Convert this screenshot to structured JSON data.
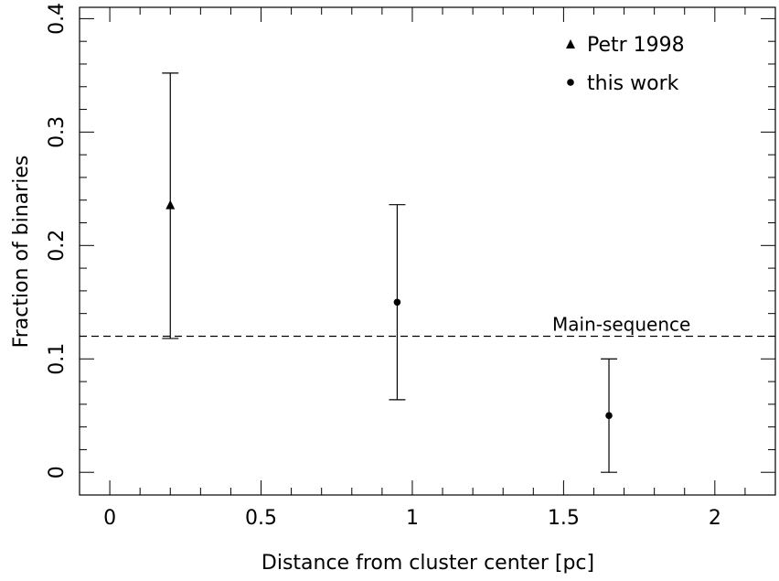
{
  "chart_data": {
    "type": "scatter",
    "xlabel": "Distance from cluster center [pc]",
    "ylabel": "Fraction of binaries",
    "xlim": [
      -0.1,
      2.2
    ],
    "ylim": [
      -0.02,
      0.41
    ],
    "xticks": [
      {
        "value": 0,
        "label": "0"
      },
      {
        "value": 0.5,
        "label": "0.5"
      },
      {
        "value": 1,
        "label": "1"
      },
      {
        "value": 1.5,
        "label": "1.5"
      },
      {
        "value": 2,
        "label": "2"
      }
    ],
    "yticks": [
      {
        "value": 0,
        "label": "0"
      },
      {
        "value": 0.1,
        "label": "0.1"
      },
      {
        "value": 0.2,
        "label": "0.2"
      },
      {
        "value": 0.3,
        "label": "0.3"
      },
      {
        "value": 0.4,
        "label": "0.4"
      }
    ],
    "series": [
      {
        "name": "Petr 1998",
        "marker": "triangle",
        "points": [
          {
            "x": 0.2,
            "y": 0.236,
            "ylow": 0.118,
            "yhigh": 0.352
          }
        ]
      },
      {
        "name": "this work",
        "marker": "circle",
        "points": [
          {
            "x": 0.95,
            "y": 0.15,
            "ylow": 0.064,
            "yhigh": 0.236
          },
          {
            "x": 1.65,
            "y": 0.05,
            "ylow": 0.0,
            "yhigh": 0.1
          }
        ]
      }
    ],
    "reference_lines": [
      {
        "label": "Main-sequence",
        "y": 0.12,
        "style": "dashed"
      }
    ],
    "legend_position": "top-right",
    "grid": false
  }
}
